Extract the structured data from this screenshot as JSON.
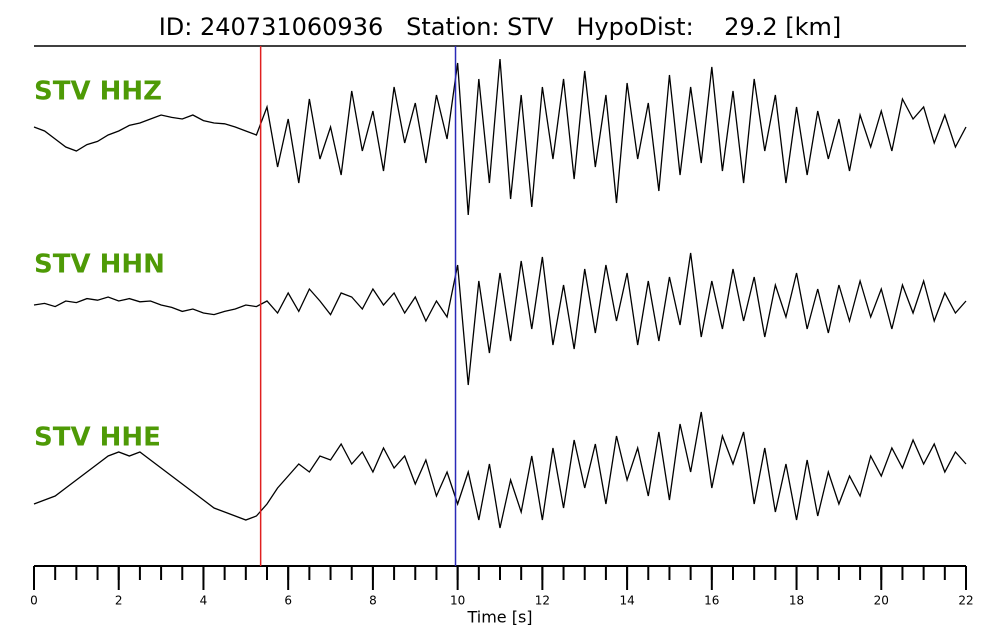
{
  "chart_data": {
    "type": "line",
    "title": "ID: 240731060936   Station: STV   HypoDist:    29.2 [km]",
    "xlabel": "Time [s]",
    "xlim": [
      0,
      22
    ],
    "xticks": [
      0,
      2,
      4,
      6,
      8,
      10,
      12,
      14,
      16,
      18,
      20,
      22
    ],
    "xminorticks": [
      0,
      0.5,
      1,
      1.5,
      2,
      2.5,
      3,
      3.5,
      4,
      4.5,
      5,
      5.5,
      6,
      6.5,
      7,
      7.5,
      8,
      8.5,
      9,
      9.5,
      10,
      10.5,
      11,
      11.5,
      12,
      12.5,
      13,
      13.5,
      14,
      14.5,
      15,
      15.5,
      16,
      16.5,
      17,
      17.5,
      18,
      18.5,
      19,
      19.5,
      20,
      20.5,
      21,
      21.5,
      22
    ],
    "ylim": [
      -1,
      1
    ],
    "label_color": "#4e9a06",
    "markers": [
      {
        "x": 5.35,
        "color": "#e02020"
      },
      {
        "x": 9.95,
        "color": "#2a2ab8"
      }
    ],
    "x": [
      0,
      0.25,
      0.5,
      0.75,
      1,
      1.25,
      1.5,
      1.75,
      2,
      2.25,
      2.5,
      2.75,
      3,
      3.25,
      3.5,
      3.75,
      4,
      4.25,
      4.5,
      4.75,
      5,
      5.25,
      5.5,
      5.75,
      6,
      6.25,
      6.5,
      6.75,
      7,
      7.25,
      7.5,
      7.75,
      8,
      8.25,
      8.5,
      8.75,
      9,
      9.25,
      9.5,
      9.75,
      10,
      10.25,
      10.5,
      10.75,
      11,
      11.25,
      11.5,
      11.75,
      12,
      12.25,
      12.5,
      12.75,
      13,
      13.25,
      13.5,
      13.75,
      14,
      14.25,
      14.5,
      14.75,
      15,
      15.25,
      15.5,
      15.75,
      16,
      16.25,
      16.5,
      16.75,
      17,
      17.25,
      17.5,
      17.75,
      18,
      18.25,
      18.5,
      18.75,
      19,
      19.25,
      19.5,
      19.75,
      20,
      20.25,
      20.5,
      20.75,
      21,
      21.25,
      21.5,
      21.75,
      22
    ],
    "series": [
      {
        "name": "STV HHZ",
        "color": "#000000",
        "values": [
          0.1,
          0.05,
          -0.05,
          -0.15,
          -0.2,
          -0.12,
          -0.08,
          0.0,
          0.05,
          0.12,
          0.15,
          0.2,
          0.25,
          0.22,
          0.2,
          0.25,
          0.18,
          0.15,
          0.14,
          0.1,
          0.05,
          0.0,
          0.35,
          -0.4,
          0.2,
          -0.6,
          0.45,
          -0.3,
          0.1,
          -0.5,
          0.55,
          -0.2,
          0.3,
          -0.45,
          0.6,
          -0.1,
          0.4,
          -0.35,
          0.5,
          -0.05,
          0.9,
          -1.0,
          0.7,
          -0.6,
          0.95,
          -0.8,
          0.5,
          -0.9,
          0.6,
          -0.3,
          0.7,
          -0.55,
          0.8,
          -0.4,
          0.5,
          -0.85,
          0.65,
          -0.3,
          0.4,
          -0.7,
          0.75,
          -0.5,
          0.6,
          -0.35,
          0.85,
          -0.45,
          0.55,
          -0.6,
          0.7,
          -0.2,
          0.5,
          -0.6,
          0.35,
          -0.5,
          0.3,
          -0.3,
          0.2,
          -0.45,
          0.25,
          -0.15,
          0.3,
          -0.2,
          0.45,
          0.2,
          0.35,
          -0.1,
          0.25,
          -0.15,
          0.1
        ]
      },
      {
        "name": "STV HHN",
        "color": "#000000",
        "values": [
          0.0,
          0.02,
          -0.02,
          0.05,
          0.03,
          0.08,
          0.06,
          0.1,
          0.05,
          0.08,
          0.04,
          0.05,
          0.0,
          -0.03,
          -0.08,
          -0.05,
          -0.1,
          -0.12,
          -0.08,
          -0.05,
          0.0,
          -0.02,
          0.05,
          -0.1,
          0.15,
          -0.08,
          0.2,
          0.05,
          -0.12,
          0.15,
          0.1,
          -0.05,
          0.2,
          0.0,
          0.15,
          -0.1,
          0.1,
          -0.2,
          0.05,
          -0.15,
          0.5,
          -1.0,
          0.3,
          -0.6,
          0.4,
          -0.45,
          0.55,
          -0.3,
          0.6,
          -0.5,
          0.25,
          -0.55,
          0.45,
          -0.35,
          0.5,
          -0.2,
          0.4,
          -0.5,
          0.3,
          -0.45,
          0.35,
          -0.25,
          0.65,
          -0.4,
          0.3,
          -0.3,
          0.45,
          -0.2,
          0.35,
          -0.4,
          0.25,
          -0.15,
          0.4,
          -0.3,
          0.2,
          -0.35,
          0.25,
          -0.2,
          0.3,
          -0.15,
          0.2,
          -0.3,
          0.25,
          -0.1,
          0.3,
          -0.2,
          0.15,
          -0.1,
          0.05
        ]
      },
      {
        "name": "STV HHE",
        "color": "#000000",
        "values": [
          -0.3,
          -0.25,
          -0.2,
          -0.1,
          0.0,
          0.1,
          0.2,
          0.3,
          0.35,
          0.3,
          0.35,
          0.25,
          0.15,
          0.05,
          -0.05,
          -0.15,
          -0.25,
          -0.35,
          -0.4,
          -0.45,
          -0.5,
          -0.45,
          -0.3,
          -0.1,
          0.05,
          0.2,
          0.1,
          0.3,
          0.25,
          0.45,
          0.2,
          0.35,
          0.1,
          0.4,
          0.15,
          0.3,
          -0.05,
          0.25,
          -0.2,
          0.1,
          -0.3,
          0.1,
          -0.5,
          0.2,
          -0.6,
          0.0,
          -0.4,
          0.3,
          -0.5,
          0.4,
          -0.35,
          0.5,
          -0.1,
          0.45,
          -0.3,
          0.55,
          0.0,
          0.4,
          -0.2,
          0.6,
          -0.25,
          0.7,
          0.1,
          0.85,
          -0.1,
          0.55,
          0.2,
          0.6,
          -0.3,
          0.4,
          -0.4,
          0.2,
          -0.5,
          0.25,
          -0.45,
          0.1,
          -0.3,
          0.05,
          -0.2,
          0.3,
          0.05,
          0.4,
          0.15,
          0.5,
          0.2,
          0.45,
          0.1,
          0.35,
          0.2
        ]
      }
    ]
  }
}
